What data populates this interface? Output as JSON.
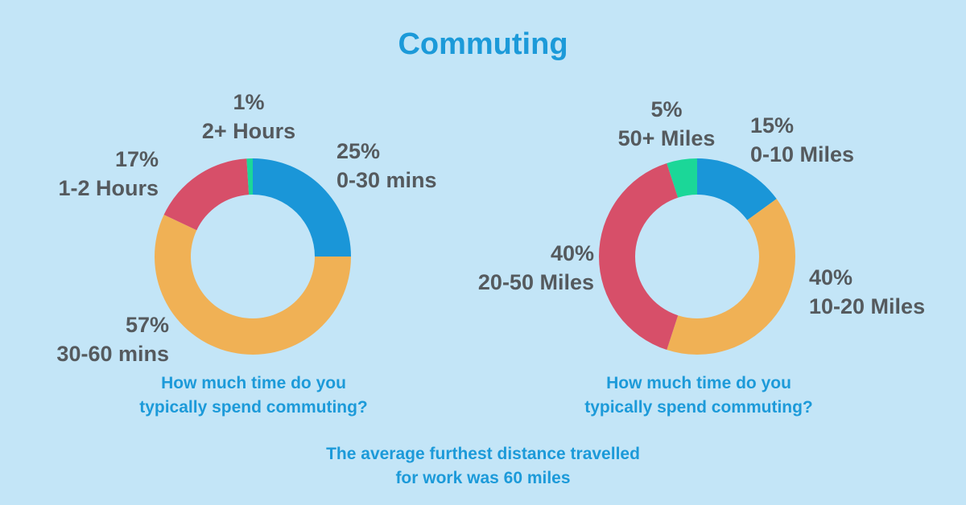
{
  "title": "Commuting",
  "colors": {
    "background": "#c3e5f7",
    "title": "#1c9ad9",
    "label": "#555a5e",
    "blue": "#1a96d8",
    "orange": "#f0b155",
    "red": "#d74f69",
    "green": "#1bd798"
  },
  "chart_data": [
    {
      "type": "pie",
      "variant": "donut",
      "caption_lines": [
        "How much time do you",
        "typically spend commuting?"
      ],
      "slices": [
        {
          "label": "0-30 mins",
          "value": 25,
          "value_label": "25%",
          "color": "#1a96d8"
        },
        {
          "label": "30-60 mins",
          "value": 57,
          "value_label": "57%",
          "color": "#f0b155"
        },
        {
          "label": "1-2 Hours",
          "value": 17,
          "value_label": "17%",
          "color": "#d74f69"
        },
        {
          "label": "2+ Hours",
          "value": 1,
          "value_label": "1%",
          "color": "#1bd798"
        }
      ]
    },
    {
      "type": "pie",
      "variant": "donut",
      "caption_lines": [
        "How much time do you",
        "typically spend commuting?"
      ],
      "slices": [
        {
          "label": "0-10 Miles",
          "value": 15,
          "value_label": "15%",
          "color": "#1a96d8"
        },
        {
          "label": "10-20 Miles",
          "value": 40,
          "value_label": "40%",
          "color": "#f0b155"
        },
        {
          "label": "20-50 Miles",
          "value": 40,
          "value_label": "40%",
          "color": "#d74f69"
        },
        {
          "label": "50+ Miles",
          "value": 5,
          "value_label": "5%",
          "color": "#1bd798"
        }
      ]
    }
  ],
  "footer_lines": [
    "The average furthest distance travelled",
    "for work was 60 miles"
  ]
}
